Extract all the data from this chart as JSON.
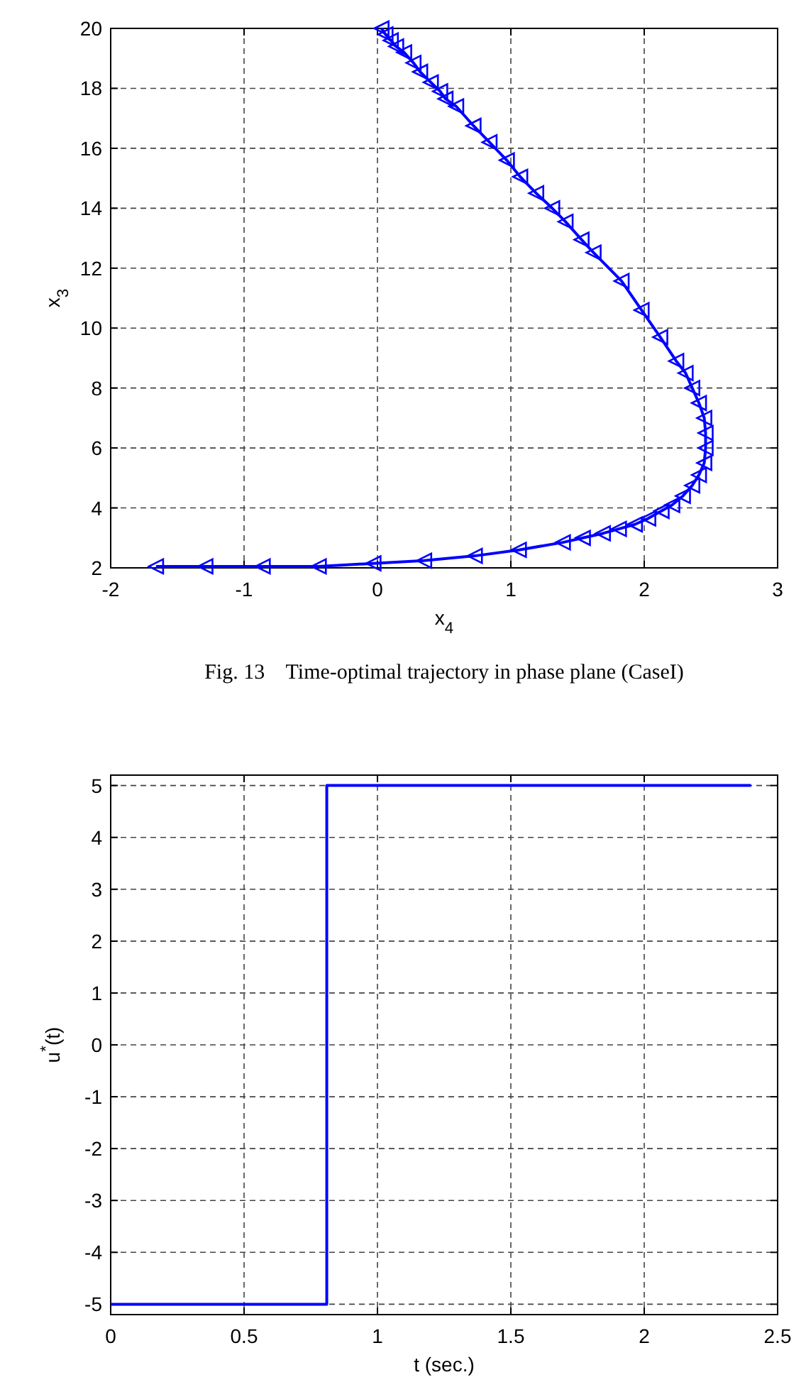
{
  "chart_data": [
    {
      "type": "line",
      "title": "Fig. 13    Time-optimal trajectory in phase plane (CaseI)",
      "xlabel": "x$_{4}$",
      "ylabel": "x$_{3}$",
      "xlim": [
        -2,
        3
      ],
      "ylim": [
        2,
        20
      ],
      "xticks": [
        -2,
        -1,
        0,
        1,
        2,
        3
      ],
      "yticks": [
        2,
        4,
        6,
        8,
        10,
        12,
        14,
        16,
        18,
        20
      ],
      "grid": true,
      "marker": "triangle",
      "line_style": "solid",
      "series": [
        {
          "color": "#0000ff",
          "x": [
            0.03,
            0.06,
            0.1,
            0.14,
            0.2,
            0.27,
            0.32,
            0.4,
            0.47,
            0.51,
            0.59,
            0.72,
            0.84,
            0.97,
            1.07,
            1.19,
            1.31,
            1.41,
            1.53,
            1.62,
            1.83,
            1.98,
            2.12,
            2.24,
            2.31,
            2.36,
            2.41,
            2.45,
            2.46,
            2.46,
            2.45,
            2.41,
            2.36,
            2.29,
            2.21,
            2.13,
            2.03,
            1.93,
            1.81,
            1.69,
            1.54,
            1.39,
            1.06,
            0.73,
            0.35,
            -0.03,
            -0.44,
            -0.86,
            -1.29,
            -1.66
          ],
          "values": [
            20,
            19.8,
            19.6,
            19.4,
            19.2,
            18.85,
            18.55,
            18.2,
            17.9,
            17.65,
            17.4,
            16.75,
            16.2,
            15.6,
            15.05,
            14.5,
            14.0,
            13.55,
            12.95,
            12.52,
            11.57,
            10.6,
            9.7,
            8.9,
            8.5,
            8.0,
            7.5,
            7.0,
            6.5,
            6.0,
            5.5,
            5.1,
            4.75,
            4.4,
            4.1,
            3.9,
            3.65,
            3.45,
            3.3,
            3.15,
            3.0,
            2.85,
            2.6,
            2.4,
            2.24,
            2.15,
            2.05,
            2.05,
            2.05,
            2.05
          ]
        }
      ]
    },
    {
      "type": "step",
      "xlabel": "t (sec.)",
      "ylabel": "u$^{*}$(t)",
      "xlim": [
        0,
        2.5
      ],
      "ylim": [
        -5.2,
        5.2
      ],
      "xticks": [
        0,
        0.5,
        1,
        1.5,
        2,
        2.5
      ],
      "yticks": [
        -5,
        -4,
        -3,
        -2,
        -1,
        0,
        1,
        2,
        3,
        4,
        5
      ],
      "grid": true,
      "line_style": "solid",
      "series": [
        {
          "color": "#0000ff",
          "x": [
            0,
            0.81,
            2.4
          ],
          "values": [
            -5,
            5,
            5
          ]
        }
      ]
    }
  ]
}
